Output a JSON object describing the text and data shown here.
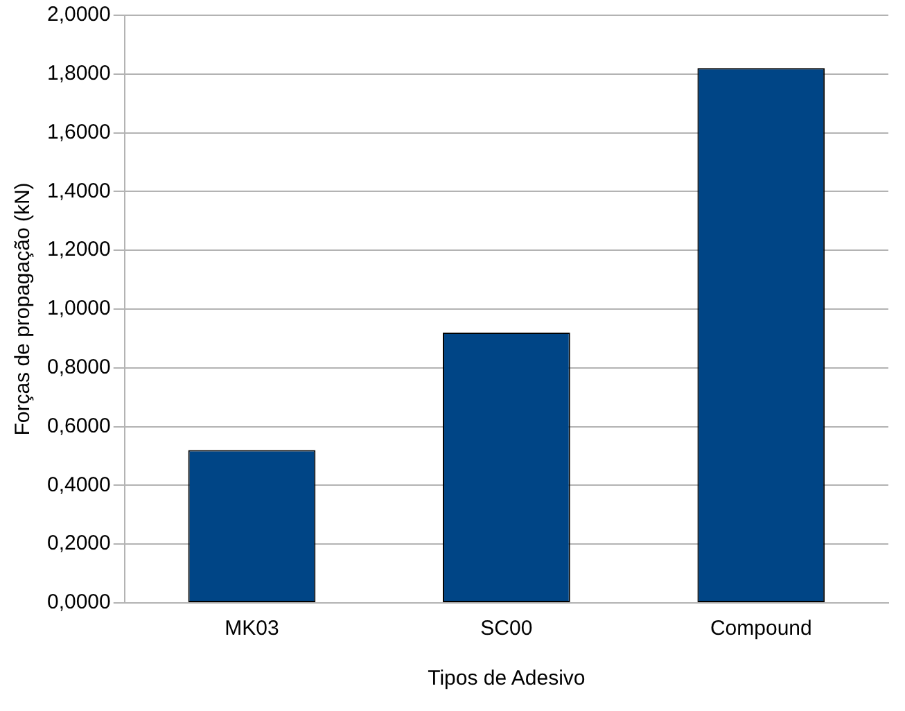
{
  "chart_data": {
    "type": "bar",
    "xlabel": "Tipos de Adesivo",
    "ylabel": "Forças de propagação (kN)",
    "categories": [
      "MK03",
      "SC00",
      "Compound"
    ],
    "values": [
      0.52,
      0.92,
      1.82
    ],
    "color": "#004586",
    "ylim": [
      0,
      2
    ],
    "yticks": [
      {
        "value": 0,
        "label": "0,0000"
      },
      {
        "value": 0.2,
        "label": "0,2000"
      },
      {
        "value": 0.4,
        "label": "0,4000"
      },
      {
        "value": 0.6,
        "label": "0,6000"
      },
      {
        "value": 0.8,
        "label": "0,8000"
      },
      {
        "value": 1,
        "label": "1,0000"
      },
      {
        "value": 1.2,
        "label": "1,2000"
      },
      {
        "value": 1.4,
        "label": "1,4000"
      },
      {
        "value": 1.6,
        "label": "1,6000"
      },
      {
        "value": 1.8,
        "label": "1,8000"
      },
      {
        "value": 2,
        "label": "2,0000"
      }
    ],
    "grid": "y",
    "legend": false
  }
}
